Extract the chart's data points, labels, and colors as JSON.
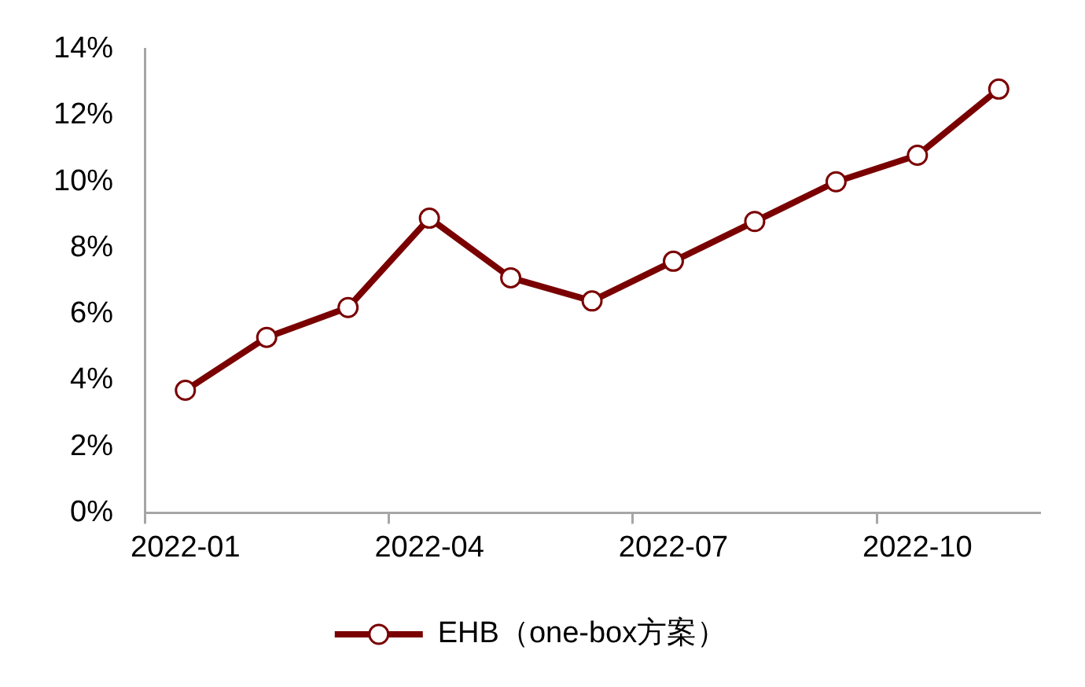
{
  "chart_data": {
    "type": "line",
    "categories": [
      "2022-01",
      null,
      null,
      "2022-04",
      null,
      null,
      "2022-07",
      null,
      null,
      "2022-10",
      null
    ],
    "series": [
      {
        "name": "EHB（one-box方案）",
        "color": "#7a0000",
        "values": [
          3.7,
          5.3,
          6.2,
          8.9,
          7.1,
          6.4,
          7.6,
          8.8,
          10.0,
          10.8,
          12.8
        ]
      }
    ],
    "ylim": [
      0,
      14
    ],
    "yticks": [
      {
        "value": 0,
        "label": "0%"
      },
      {
        "value": 2,
        "label": "2%"
      },
      {
        "value": 4,
        "label": "4%"
      },
      {
        "value": 6,
        "label": "6%"
      },
      {
        "value": 8,
        "label": "8%"
      },
      {
        "value": 10,
        "label": "10%"
      },
      {
        "value": 12,
        "label": "12%"
      },
      {
        "value": 14,
        "label": "14%"
      }
    ],
    "legend": "bottom",
    "marker": "circle",
    "line_style": "solid",
    "grid": false
  }
}
